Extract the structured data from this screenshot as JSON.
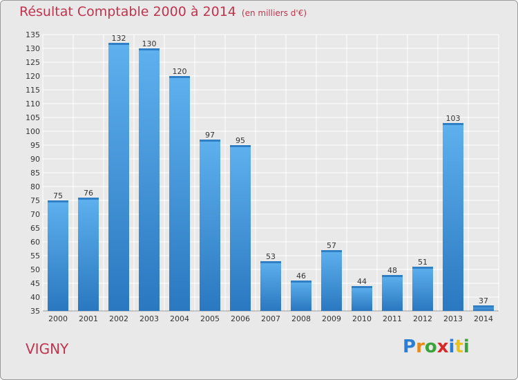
{
  "title": "Résultat Comptable 2000 à 2014",
  "unit": "(en milliers d'€)",
  "place": "VIGNY",
  "logo": {
    "letters": [
      "P",
      "r",
      "o",
      "x",
      "i",
      "t",
      "i"
    ],
    "colors": [
      "#2a7fd4",
      "#e88a1a",
      "#3aa33a",
      "#d62a2a",
      "#2a7fd4",
      "#e8c41a",
      "#3aa33a"
    ]
  },
  "chart_data": {
    "type": "bar",
    "categories": [
      "2000",
      "2001",
      "2002",
      "2003",
      "2004",
      "2005",
      "2006",
      "2007",
      "2008",
      "2009",
      "2010",
      "2011",
      "2012",
      "2013",
      "2014"
    ],
    "values": [
      75,
      76,
      132,
      130,
      120,
      97,
      95,
      53,
      46,
      57,
      44,
      48,
      51,
      103,
      37
    ],
    "title": "Résultat Comptable 2000 à 2014",
    "xlabel": "",
    "ylabel": "",
    "ylim": [
      35,
      135
    ],
    "ytick_step": 5,
    "grid": true,
    "bar_color": "#4a9de0"
  }
}
